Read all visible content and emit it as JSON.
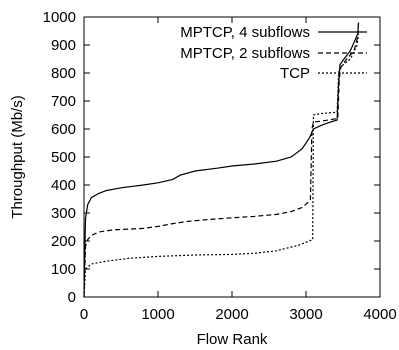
{
  "chart_data": {
    "type": "line",
    "xlabel": "Flow Rank",
    "ylabel": "Throughput (Mb/s)",
    "xlim": [
      0,
      4000
    ],
    "ylim": [
      0,
      1000
    ],
    "x_ticks": [
      {
        "value": 0,
        "label": "0"
      },
      {
        "value": 1000,
        "label": "1000"
      },
      {
        "value": 2000,
        "label": "2000"
      },
      {
        "value": 3000,
        "label": "3000"
      },
      {
        "value": 4000,
        "label": "4000"
      }
    ],
    "y_ticks": [
      {
        "value": 0,
        "label": "0"
      },
      {
        "value": 100,
        "label": "100"
      },
      {
        "value": 200,
        "label": "200"
      },
      {
        "value": 300,
        "label": "300"
      },
      {
        "value": 400,
        "label": "400"
      },
      {
        "value": 500,
        "label": "500"
      },
      {
        "value": 600,
        "label": "600"
      },
      {
        "value": 700,
        "label": "700"
      },
      {
        "value": 800,
        "label": "800"
      },
      {
        "value": 900,
        "label": "900"
      },
      {
        "value": 1000,
        "label": "1000"
      }
    ],
    "grid": false,
    "legend_position": "top-right",
    "series": [
      {
        "name": "MPTCP, 4 subflows",
        "style": "solid",
        "color": "#000000",
        "points": [
          [
            0,
            0
          ],
          [
            20,
            280
          ],
          [
            50,
            330
          ],
          [
            100,
            355
          ],
          [
            200,
            370
          ],
          [
            300,
            380
          ],
          [
            500,
            390
          ],
          [
            800,
            400
          ],
          [
            1000,
            408
          ],
          [
            1200,
            420
          ],
          [
            1300,
            435
          ],
          [
            1500,
            450
          ],
          [
            1800,
            460
          ],
          [
            2000,
            468
          ],
          [
            2300,
            475
          ],
          [
            2600,
            485
          ],
          [
            2800,
            500
          ],
          [
            2950,
            530
          ],
          [
            3050,
            570
          ],
          [
            3100,
            600
          ],
          [
            3200,
            612
          ],
          [
            3300,
            622
          ],
          [
            3420,
            632
          ],
          [
            3440,
            760
          ],
          [
            3460,
            830
          ],
          [
            3500,
            845
          ],
          [
            3600,
            880
          ],
          [
            3700,
            940
          ],
          [
            3710,
            980
          ]
        ]
      },
      {
        "name": "MPTCP, 2 subflows",
        "style": "dashed",
        "color": "#000000",
        "points": [
          [
            0,
            0
          ],
          [
            20,
            180
          ],
          [
            50,
            205
          ],
          [
            100,
            220
          ],
          [
            200,
            232
          ],
          [
            400,
            240
          ],
          [
            800,
            245
          ],
          [
            1000,
            252
          ],
          [
            1200,
            262
          ],
          [
            1400,
            270
          ],
          [
            1700,
            277
          ],
          [
            2000,
            283
          ],
          [
            2300,
            288
          ],
          [
            2600,
            295
          ],
          [
            2800,
            305
          ],
          [
            2950,
            320
          ],
          [
            3060,
            345
          ],
          [
            3080,
            600
          ],
          [
            3100,
            625
          ],
          [
            3200,
            628
          ],
          [
            3300,
            632
          ],
          [
            3430,
            638
          ],
          [
            3450,
            780
          ],
          [
            3470,
            820
          ],
          [
            3550,
            850
          ],
          [
            3650,
            880
          ],
          [
            3700,
            930
          ],
          [
            3710,
            980
          ]
        ]
      },
      {
        "name": "TCP",
        "style": "dotted",
        "color": "#000000",
        "points": [
          [
            0,
            0
          ],
          [
            20,
            100
          ],
          [
            100,
            118
          ],
          [
            300,
            128
          ],
          [
            600,
            138
          ],
          [
            1000,
            145
          ],
          [
            1500,
            150
          ],
          [
            2000,
            152
          ],
          [
            2300,
            156
          ],
          [
            2600,
            165
          ],
          [
            2900,
            185
          ],
          [
            3090,
            205
          ],
          [
            3100,
            650
          ],
          [
            3200,
            655
          ],
          [
            3420,
            660
          ],
          [
            3440,
            800
          ],
          [
            3460,
            820
          ],
          [
            3600,
            850
          ],
          [
            3690,
            900
          ],
          [
            3710,
            940
          ]
        ]
      }
    ]
  }
}
